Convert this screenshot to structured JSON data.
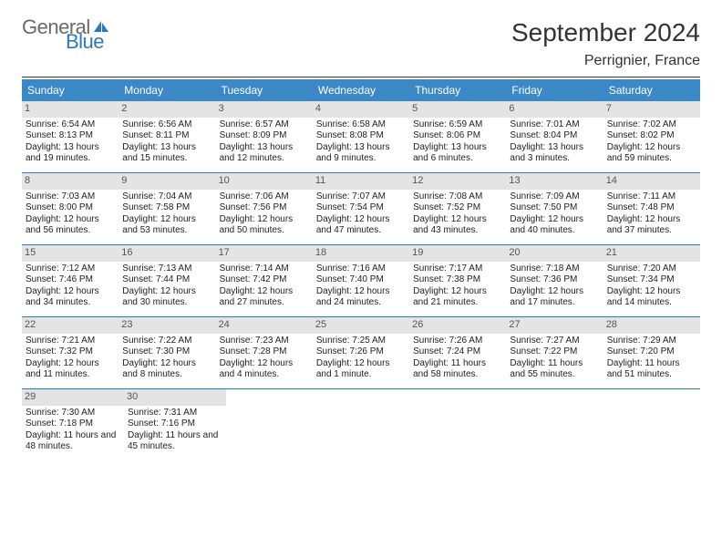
{
  "logo": {
    "part1": "General",
    "part2": "Blue"
  },
  "title": "September 2024",
  "location": "Perrignier, France",
  "colors": {
    "header_bg": "#3b88c8",
    "header_fg": "#ffffff",
    "daynum_bg": "#e4e4e4",
    "week_border": "#2e78bd",
    "text": "#222222"
  },
  "fonts": {
    "title_size": 28,
    "location_size": 16,
    "header_size": 12,
    "cell_size": 10
  },
  "day_names": [
    "Sunday",
    "Monday",
    "Tuesday",
    "Wednesday",
    "Thursday",
    "Friday",
    "Saturday"
  ],
  "weeks": [
    [
      {
        "num": "1",
        "sunrise": "Sunrise: 6:54 AM",
        "sunset": "Sunset: 8:13 PM",
        "daylight": "Daylight: 13 hours and 19 minutes."
      },
      {
        "num": "2",
        "sunrise": "Sunrise: 6:56 AM",
        "sunset": "Sunset: 8:11 PM",
        "daylight": "Daylight: 13 hours and 15 minutes."
      },
      {
        "num": "3",
        "sunrise": "Sunrise: 6:57 AM",
        "sunset": "Sunset: 8:09 PM",
        "daylight": "Daylight: 13 hours and 12 minutes."
      },
      {
        "num": "4",
        "sunrise": "Sunrise: 6:58 AM",
        "sunset": "Sunset: 8:08 PM",
        "daylight": "Daylight: 13 hours and 9 minutes."
      },
      {
        "num": "5",
        "sunrise": "Sunrise: 6:59 AM",
        "sunset": "Sunset: 8:06 PM",
        "daylight": "Daylight: 13 hours and 6 minutes."
      },
      {
        "num": "6",
        "sunrise": "Sunrise: 7:01 AM",
        "sunset": "Sunset: 8:04 PM",
        "daylight": "Daylight: 13 hours and 3 minutes."
      },
      {
        "num": "7",
        "sunrise": "Sunrise: 7:02 AM",
        "sunset": "Sunset: 8:02 PM",
        "daylight": "Daylight: 12 hours and 59 minutes."
      }
    ],
    [
      {
        "num": "8",
        "sunrise": "Sunrise: 7:03 AM",
        "sunset": "Sunset: 8:00 PM",
        "daylight": "Daylight: 12 hours and 56 minutes."
      },
      {
        "num": "9",
        "sunrise": "Sunrise: 7:04 AM",
        "sunset": "Sunset: 7:58 PM",
        "daylight": "Daylight: 12 hours and 53 minutes."
      },
      {
        "num": "10",
        "sunrise": "Sunrise: 7:06 AM",
        "sunset": "Sunset: 7:56 PM",
        "daylight": "Daylight: 12 hours and 50 minutes."
      },
      {
        "num": "11",
        "sunrise": "Sunrise: 7:07 AM",
        "sunset": "Sunset: 7:54 PM",
        "daylight": "Daylight: 12 hours and 47 minutes."
      },
      {
        "num": "12",
        "sunrise": "Sunrise: 7:08 AM",
        "sunset": "Sunset: 7:52 PM",
        "daylight": "Daylight: 12 hours and 43 minutes."
      },
      {
        "num": "13",
        "sunrise": "Sunrise: 7:09 AM",
        "sunset": "Sunset: 7:50 PM",
        "daylight": "Daylight: 12 hours and 40 minutes."
      },
      {
        "num": "14",
        "sunrise": "Sunrise: 7:11 AM",
        "sunset": "Sunset: 7:48 PM",
        "daylight": "Daylight: 12 hours and 37 minutes."
      }
    ],
    [
      {
        "num": "15",
        "sunrise": "Sunrise: 7:12 AM",
        "sunset": "Sunset: 7:46 PM",
        "daylight": "Daylight: 12 hours and 34 minutes."
      },
      {
        "num": "16",
        "sunrise": "Sunrise: 7:13 AM",
        "sunset": "Sunset: 7:44 PM",
        "daylight": "Daylight: 12 hours and 30 minutes."
      },
      {
        "num": "17",
        "sunrise": "Sunrise: 7:14 AM",
        "sunset": "Sunset: 7:42 PM",
        "daylight": "Daylight: 12 hours and 27 minutes."
      },
      {
        "num": "18",
        "sunrise": "Sunrise: 7:16 AM",
        "sunset": "Sunset: 7:40 PM",
        "daylight": "Daylight: 12 hours and 24 minutes."
      },
      {
        "num": "19",
        "sunrise": "Sunrise: 7:17 AM",
        "sunset": "Sunset: 7:38 PM",
        "daylight": "Daylight: 12 hours and 21 minutes."
      },
      {
        "num": "20",
        "sunrise": "Sunrise: 7:18 AM",
        "sunset": "Sunset: 7:36 PM",
        "daylight": "Daylight: 12 hours and 17 minutes."
      },
      {
        "num": "21",
        "sunrise": "Sunrise: 7:20 AM",
        "sunset": "Sunset: 7:34 PM",
        "daylight": "Daylight: 12 hours and 14 minutes."
      }
    ],
    [
      {
        "num": "22",
        "sunrise": "Sunrise: 7:21 AM",
        "sunset": "Sunset: 7:32 PM",
        "daylight": "Daylight: 12 hours and 11 minutes."
      },
      {
        "num": "23",
        "sunrise": "Sunrise: 7:22 AM",
        "sunset": "Sunset: 7:30 PM",
        "daylight": "Daylight: 12 hours and 8 minutes."
      },
      {
        "num": "24",
        "sunrise": "Sunrise: 7:23 AM",
        "sunset": "Sunset: 7:28 PM",
        "daylight": "Daylight: 12 hours and 4 minutes."
      },
      {
        "num": "25",
        "sunrise": "Sunrise: 7:25 AM",
        "sunset": "Sunset: 7:26 PM",
        "daylight": "Daylight: 12 hours and 1 minute."
      },
      {
        "num": "26",
        "sunrise": "Sunrise: 7:26 AM",
        "sunset": "Sunset: 7:24 PM",
        "daylight": "Daylight: 11 hours and 58 minutes."
      },
      {
        "num": "27",
        "sunrise": "Sunrise: 7:27 AM",
        "sunset": "Sunset: 7:22 PM",
        "daylight": "Daylight: 11 hours and 55 minutes."
      },
      {
        "num": "28",
        "sunrise": "Sunrise: 7:29 AM",
        "sunset": "Sunset: 7:20 PM",
        "daylight": "Daylight: 11 hours and 51 minutes."
      }
    ],
    [
      {
        "num": "29",
        "sunrise": "Sunrise: 7:30 AM",
        "sunset": "Sunset: 7:18 PM",
        "daylight": "Daylight: 11 hours and 48 minutes."
      },
      {
        "num": "30",
        "sunrise": "Sunrise: 7:31 AM",
        "sunset": "Sunset: 7:16 PM",
        "daylight": "Daylight: 11 hours and 45 minutes."
      },
      null,
      null,
      null,
      null,
      null
    ]
  ]
}
